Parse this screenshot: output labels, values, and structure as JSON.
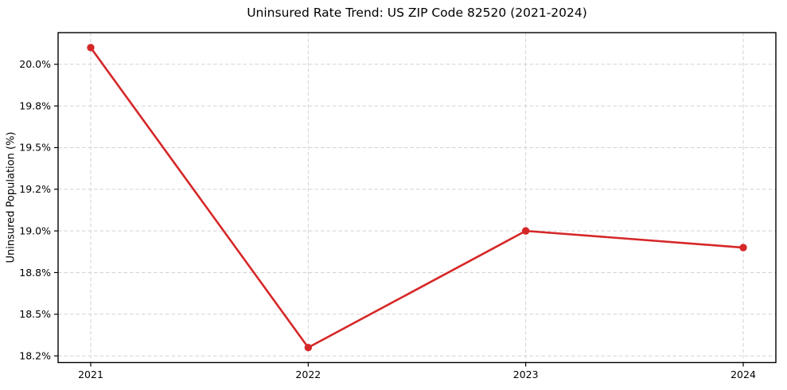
{
  "chart_data": {
    "type": "line",
    "title": "Uninsured Rate Trend: US ZIP Code 82520 (2021-2024)",
    "xlabel": "",
    "ylabel": "Uninsured Population (%)",
    "x": [
      2021,
      2022,
      2023,
      2024
    ],
    "values": [
      20.1,
      18.3,
      19.0,
      18.9
    ],
    "x_ticks": [
      {
        "value": 2021,
        "label": "2021"
      },
      {
        "value": 2022,
        "label": "2022"
      },
      {
        "value": 2023,
        "label": "2023"
      },
      {
        "value": 2024,
        "label": "2024"
      }
    ],
    "y_ticks": [
      {
        "value": 18.25,
        "label": "18.2%"
      },
      {
        "value": 18.5,
        "label": "18.5%"
      },
      {
        "value": 18.75,
        "label": "18.8%"
      },
      {
        "value": 19.0,
        "label": "19.0%"
      },
      {
        "value": 19.25,
        "label": "19.2%"
      },
      {
        "value": 19.5,
        "label": "19.5%"
      },
      {
        "value": 19.75,
        "label": "19.8%"
      },
      {
        "value": 20.0,
        "label": "20.0%"
      }
    ],
    "xlim": [
      2020.85,
      2024.15
    ],
    "ylim": [
      18.21,
      20.19
    ],
    "grid": true,
    "grid_style": "dashed",
    "legend": "none",
    "line_color": "#d62728",
    "marker": "circle",
    "grid_color": "#d2d2d2",
    "axis_color": "#000000",
    "background_color": "#ffffff"
  }
}
